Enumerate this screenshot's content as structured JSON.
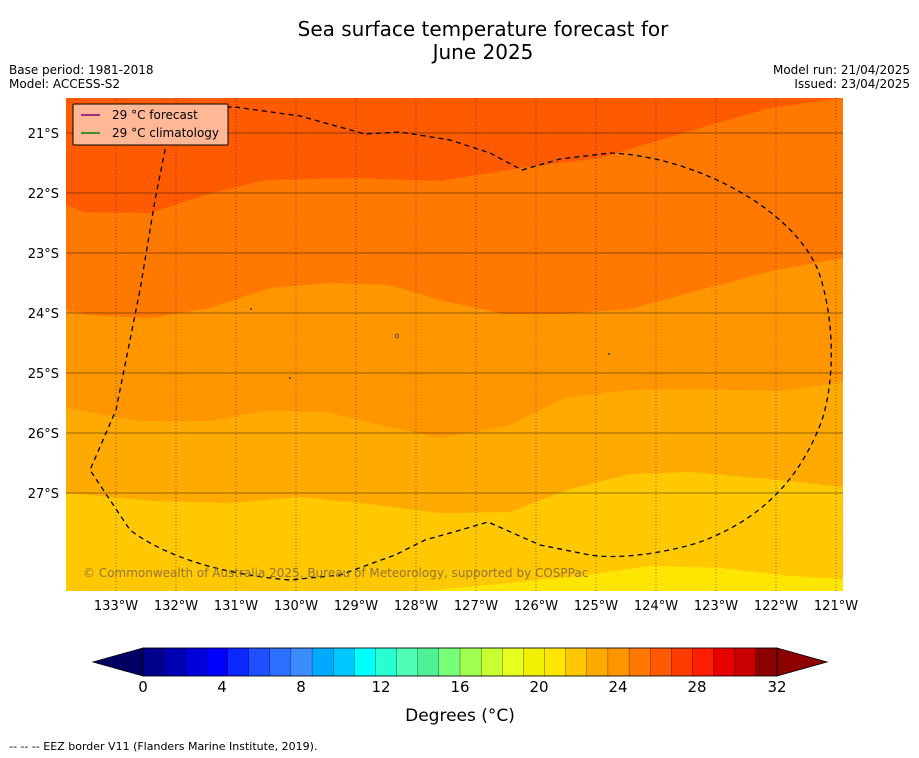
{
  "header": {
    "title_line1": "Sea surface temperature forecast for",
    "title_line2": "June 2025",
    "base_period": "Base period: 1981-2018",
    "model": "Model: ACCESS-S2",
    "model_run": "Model run: 21/04/2025",
    "issued": "Issued: 23/04/2025"
  },
  "map": {
    "lat_labels": [
      "21°S",
      "22°S",
      "23°S",
      "24°S",
      "25°S",
      "26°S",
      "27°S"
    ],
    "lon_labels": [
      "133°W",
      "132°W",
      "131°W",
      "130°W",
      "129°W",
      "128°W",
      "127°W",
      "126°W",
      "125°W",
      "124°W",
      "123°W",
      "122°W",
      "121°W"
    ],
    "legend": {
      "forecast": "29 °C  forecast",
      "climatology": "29 °C  climatology",
      "forecast_color": "#800080",
      "climatology_color": "#008000"
    },
    "copyright": "© Commonwealth of Australia 2025, Bureau of Meteorology, supported by COSPPac"
  },
  "colorbar": {
    "ticks": [
      "0",
      "4",
      "8",
      "12",
      "16",
      "20",
      "24",
      "28",
      "32"
    ],
    "label": "Degrees (°C)",
    "colors": [
      "#00008c",
      "#0000b4",
      "#0000dc",
      "#0000ff",
      "#0a28ff",
      "#1e50ff",
      "#2d6eff",
      "#3c8cff",
      "#00aaff",
      "#00c8ff",
      "#00ffff",
      "#28ffd2",
      "#50ffb4",
      "#50f096",
      "#78ff78",
      "#a0ff50",
      "#c8ff32",
      "#e6ff1e",
      "#f0f000",
      "#ffe600",
      "#ffc800",
      "#ffaa00",
      "#ff9600",
      "#ff7800",
      "#ff5a00",
      "#ff3c00",
      "#ff1e00",
      "#e60000",
      "#c80000",
      "#8c0000"
    ],
    "under_color": "#000064",
    "over_color": "#8c0000"
  },
  "footer": {
    "eez": "--  --  -- EEZ border V11 (Flanders Marine Institute, 2019)."
  }
}
